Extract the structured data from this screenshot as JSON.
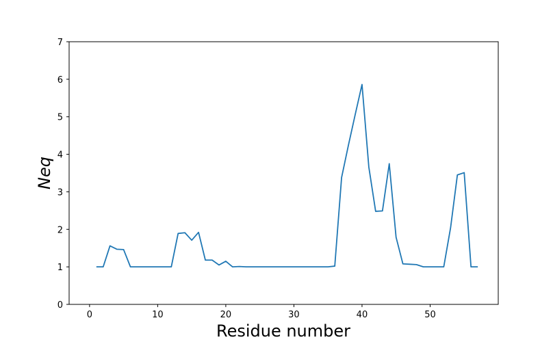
{
  "chart_data": {
    "type": "line",
    "title": "",
    "xlabel": "Residue number",
    "ylabel": "Neq",
    "xlim": [
      -3,
      60
    ],
    "ylim": [
      0,
      7
    ],
    "x_ticks": [
      0,
      10,
      20,
      30,
      40,
      50
    ],
    "y_ticks": [
      0,
      1,
      2,
      3,
      4,
      5,
      6,
      7
    ],
    "grid": false,
    "line_color": "#1f77b4",
    "x": [
      1,
      2,
      3,
      4,
      5,
      6,
      7,
      8,
      9,
      10,
      11,
      12,
      13,
      14,
      15,
      16,
      17,
      18,
      19,
      20,
      21,
      22,
      23,
      24,
      25,
      26,
      27,
      28,
      29,
      30,
      31,
      32,
      33,
      34,
      35,
      36,
      37,
      38,
      39,
      40,
      41,
      42,
      43,
      44,
      45,
      46,
      47,
      48,
      49,
      50,
      51,
      52,
      53,
      54,
      55,
      56,
      57
    ],
    "series": [
      {
        "values": [
          1.0,
          1.0,
          1.56,
          1.47,
          1.46,
          1.0,
          1.0,
          1.0,
          1.0,
          1.0,
          1.0,
          1.0,
          1.89,
          1.91,
          1.71,
          1.92,
          1.18,
          1.18,
          1.05,
          1.15,
          1.0,
          1.01,
          1.0,
          1.0,
          1.0,
          1.0,
          1.0,
          1.0,
          1.0,
          1.0,
          1.0,
          1.0,
          1.0,
          1.0,
          1.0,
          1.02,
          3.38,
          4.24,
          5.06,
          5.86,
          3.66,
          2.48,
          2.49,
          3.75,
          1.79,
          1.08,
          1.07,
          1.06,
          1.0,
          1.0,
          1.0,
          1.0,
          2.04,
          3.45,
          3.51,
          1.0,
          1.0
        ]
      }
    ]
  }
}
